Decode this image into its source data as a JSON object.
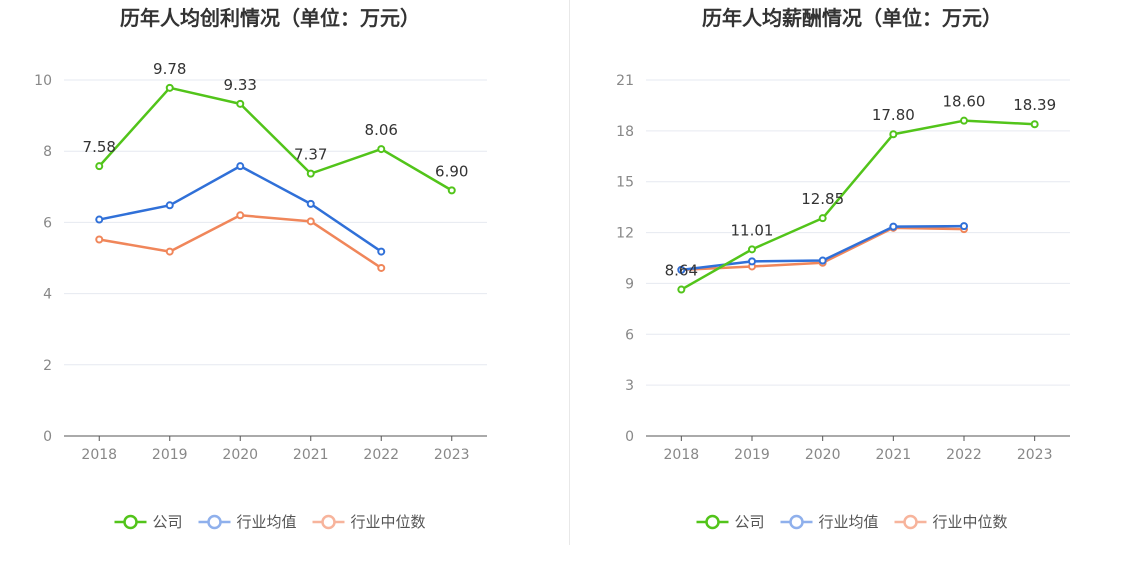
{
  "colors": {
    "company": "#52c41a",
    "industry_avg": "#3070d8",
    "industry_median": "#f0865a",
    "legend_company": "#52c41a",
    "legend_avg": "#8fb0ec",
    "legend_median": "#f7b49c",
    "grid": "#e6e9f0",
    "axis": "#555555",
    "tick": "#888888",
    "title": "#333333"
  },
  "legend": [
    {
      "key": "company",
      "label": "公司"
    },
    {
      "key": "industry_avg",
      "label": "行业均值"
    },
    {
      "key": "industry_median",
      "label": "行业中位数"
    }
  ],
  "chart_data": [
    {
      "type": "line",
      "title": "历年人均创利情况（单位：万元）",
      "categories": [
        "2018",
        "2019",
        "2020",
        "2021",
        "2022",
        "2023"
      ],
      "ylim": [
        0,
        10
      ],
      "yticks": [
        0,
        2,
        4,
        6,
        8,
        10
      ],
      "series": [
        {
          "key": "company",
          "name": "公司",
          "values": [
            7.58,
            9.78,
            9.33,
            7.37,
            8.06,
            6.9
          ],
          "labels": [
            "7.58",
            "9.78",
            "9.33",
            "7.37",
            "8.06",
            "6.90"
          ]
        },
        {
          "key": "industry_avg",
          "name": "行业均值",
          "values": [
            6.08,
            6.48,
            7.58,
            6.52,
            5.18,
            null
          ]
        },
        {
          "key": "industry_median",
          "name": "行业中位数",
          "values": [
            5.52,
            5.18,
            6.2,
            6.03,
            4.72,
            null
          ]
        }
      ]
    },
    {
      "type": "line",
      "title": "历年人均薪酬情况（单位：万元）",
      "categories": [
        "2018",
        "2019",
        "2020",
        "2021",
        "2022",
        "2023"
      ],
      "ylim": [
        0,
        21
      ],
      "yticks": [
        0,
        3,
        6,
        9,
        12,
        15,
        18,
        21
      ],
      "series": [
        {
          "key": "company",
          "name": "公司",
          "values": [
            8.64,
            11.01,
            12.85,
            17.8,
            18.6,
            18.39
          ],
          "labels": [
            "8.64",
            "11.01",
            "12.85",
            "17.80",
            "18.60",
            "18.39"
          ]
        },
        {
          "key": "industry_avg",
          "name": "行业均值",
          "values": [
            9.8,
            10.3,
            10.35,
            12.35,
            12.38,
            null
          ]
        },
        {
          "key": "industry_median",
          "name": "行业中位数",
          "values": [
            9.8,
            10.0,
            10.22,
            12.28,
            12.2,
            null
          ]
        }
      ]
    }
  ]
}
